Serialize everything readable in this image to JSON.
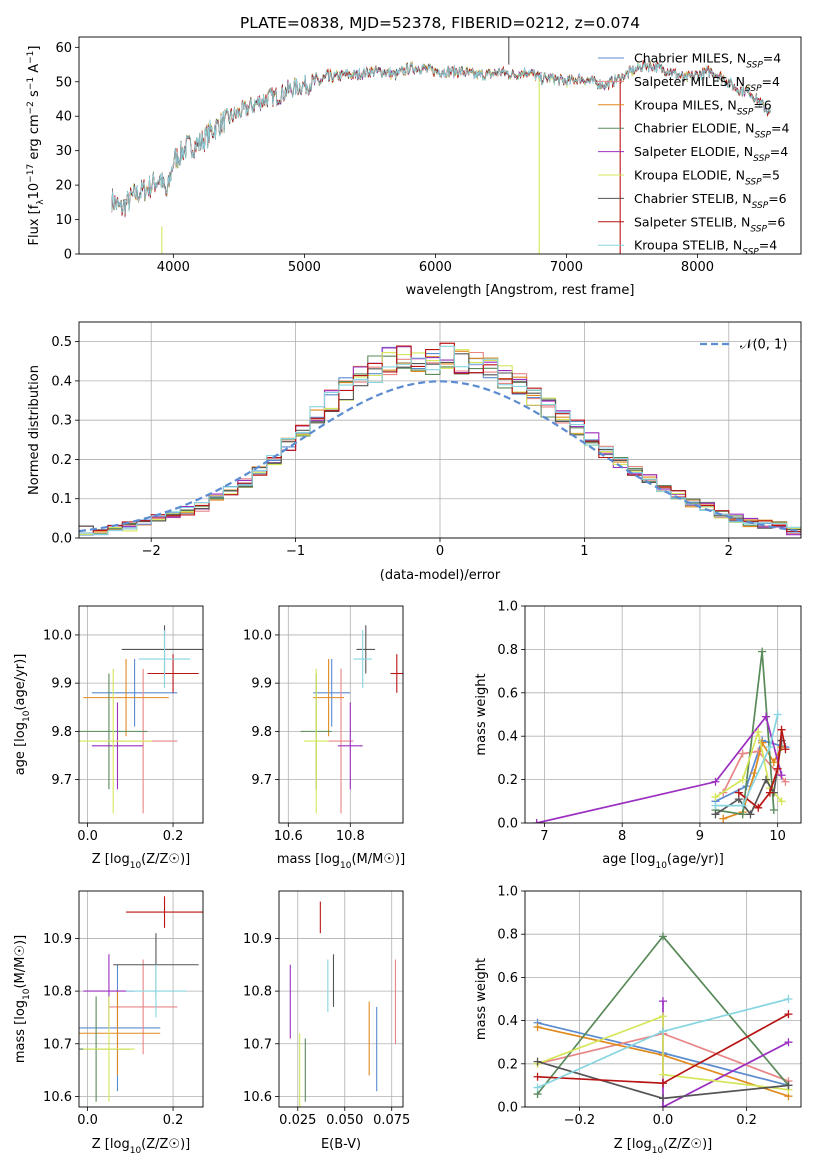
{
  "figure_title": "PLATE=0838, MJD=52378, FIBERID=0212, z=0.074",
  "colors": {
    "Chabrier MILES": "#5b8bd0",
    "Salpeter MILES": "#e88686",
    "Kroupa MILES": "#e08a1e",
    "Chabrier ELODIE": "#5a8a5a",
    "Salpeter ELODIE": "#9b2fc0",
    "Kroupa ELODIE": "#d6e65a",
    "Chabrier STELIB": "#555555",
    "Salpeter STELIB": "#b81414",
    "Kroupa STELIB": "#86d5e0",
    "normal": "#5b8bd0",
    "grid": "#b0b0b0"
  },
  "chart_data": [
    {
      "id": "spectrum",
      "type": "line",
      "title": "PLATE=0838, MJD=52378, FIBERID=0212, z=0.074",
      "xlabel": "wavelength [Angstrom, rest frame]",
      "ylabel": "Flux [f_λ10^-17 erg cm^-2 s^-1 A^-1]",
      "xlim": [
        3280,
        8790
      ],
      "ylim": [
        0,
        63
      ],
      "xticks": [
        "4000",
        "5000",
        "6000",
        "7000",
        "8000"
      ],
      "yticks": [
        "0",
        "10",
        "20",
        "30",
        "40",
        "50",
        "60"
      ],
      "grid": false,
      "legend_position": "top-right",
      "legend": [
        "Chabrier MILES, N_SSP=4",
        "Salpeter MILES, N_SSP=4",
        "Kroupa MILES, N_SSP=6",
        "Chabrier ELODIE, N_SSP=4",
        "Salpeter ELODIE, N_SSP=4",
        "Kroupa ELODIE, N_SSP=5",
        "Chabrier STELIB, N_SSP=6",
        "Salpeter STELIB, N_SSP=6",
        "Kroupa STELIB, N_SSP=4"
      ],
      "series_profile": {
        "x": [
          3530,
          3600,
          3700,
          3800,
          3900,
          3950,
          4000,
          4100,
          4200,
          4300,
          4400,
          4500,
          4600,
          4700,
          4800,
          4900,
          5000,
          5100,
          5200,
          5300,
          5400,
          5500,
          5600,
          5700,
          5800,
          5900,
          6000,
          6100,
          6200,
          6300,
          6400,
          6500,
          6600,
          6700,
          6800,
          6900,
          7000,
          7100,
          7200,
          7300,
          7400,
          7500,
          7600,
          7700,
          7800,
          7900,
          8000,
          8100,
          8200,
          8300,
          8400,
          8550
        ],
        "y": [
          16,
          13,
          17,
          19,
          22,
          17,
          27,
          31,
          32,
          36,
          39,
          41,
          43,
          45,
          46,
          48,
          49,
          50,
          51,
          52,
          52,
          53,
          53,
          52,
          54,
          54,
          53,
          53,
          53,
          52,
          52,
          53,
          52,
          53,
          51,
          51,
          50,
          51,
          50,
          49,
          51,
          53,
          55,
          54,
          53,
          51,
          52,
          53,
          51,
          48,
          47,
          41
        ]
      },
      "outliers": [
        {
          "series": "Kroupa ELODIE",
          "x": 3912,
          "y_min": 0,
          "y_max": 8
        },
        {
          "series": "Kroupa ELODIE",
          "x": 6792,
          "y_min": 0,
          "y_max": 51
        },
        {
          "series": "Salpeter STELIB",
          "x": 7410,
          "y_min": 0,
          "y_max": 51
        },
        {
          "series": "Chabrier STELIB",
          "x": 6560,
          "y_min": 55,
          "y_max": 63
        }
      ]
    },
    {
      "id": "residuals",
      "type": "histogram",
      "xlabel": "(data-model)/error",
      "ylabel": "Normed distribution",
      "xlim": [
        -2.5,
        2.5
      ],
      "ylim": [
        0,
        0.55
      ],
      "xticks": [
        -2,
        -1,
        0,
        1,
        2
      ],
      "xtick_labels": [
        "−2",
        "−1",
        "0",
        "1",
        "2"
      ],
      "yticks": [
        "0.0",
        "0.1",
        "0.2",
        "0.3",
        "0.4",
        "0.5"
      ],
      "grid": true,
      "legend_position": "top-right",
      "legend": [
        "𝒩(0, 1)"
      ],
      "bin_edges": [
        -2.5,
        -2.4,
        -2.3,
        -2.2,
        -2.1,
        -2.0,
        -1.9,
        -1.8,
        -1.7,
        -1.6,
        -1.5,
        -1.4,
        -1.3,
        -1.2,
        -1.1,
        -1.0,
        -0.9,
        -0.8,
        -0.7,
        -0.6,
        -0.5,
        -0.4,
        -0.3,
        -0.2,
        -0.1,
        0.0,
        0.1,
        0.2,
        0.3,
        0.4,
        0.5,
        0.6,
        0.7,
        0.8,
        0.9,
        1.0,
        1.1,
        1.2,
        1.3,
        1.4,
        1.5,
        1.6,
        1.7,
        1.8,
        1.9,
        2.0,
        2.1,
        2.2,
        2.3,
        2.4,
        2.5
      ],
      "base_density": [
        0.02,
        0.02,
        0.025,
        0.03,
        0.04,
        0.05,
        0.06,
        0.07,
        0.08,
        0.1,
        0.12,
        0.14,
        0.17,
        0.2,
        0.24,
        0.27,
        0.31,
        0.35,
        0.38,
        0.41,
        0.43,
        0.45,
        0.46,
        0.46,
        0.45,
        0.46,
        0.45,
        0.44,
        0.43,
        0.41,
        0.39,
        0.36,
        0.33,
        0.31,
        0.28,
        0.25,
        0.22,
        0.19,
        0.17,
        0.15,
        0.13,
        0.11,
        0.09,
        0.08,
        0.06,
        0.05,
        0.04,
        0.035,
        0.03,
        0.02
      ],
      "normal_curve": {
        "mean": 0,
        "sigma": 1
      }
    },
    {
      "id": "age_vs_z",
      "type": "errorbar",
      "xlabel": "Z [log10(Z/Z☉)]",
      "ylabel": "age  [log10(age/yr)]",
      "xlim": [
        -0.02,
        0.27
      ],
      "ylim": [
        9.61,
        10.06
      ],
      "xticks": [
        0,
        0.2
      ],
      "xtick_labels": [
        "0.0",
        "0.2"
      ],
      "yticks": [
        9.7,
        9.8,
        9.9,
        10.0
      ],
      "ytick_labels": [
        "9.7",
        "9.8",
        "9.9",
        "10.0"
      ],
      "grid": true,
      "points": [
        {
          "series": "Chabrier MILES",
          "x": 0.11,
          "xerr": 0.1,
          "y": 9.88,
          "yerr": 0.07
        },
        {
          "series": "Salpeter MILES",
          "x": 0.13,
          "xerr": 0.08,
          "y": 9.78,
          "yerr": 0.15
        },
        {
          "series": "Kroupa MILES",
          "x": 0.09,
          "xerr": 0.1,
          "y": 9.87,
          "yerr": 0.08
        },
        {
          "series": "Chabrier ELODIE",
          "x": 0.05,
          "xerr": 0.09,
          "y": 9.8,
          "yerr": 0.12
        },
        {
          "series": "Salpeter ELODIE",
          "x": 0.07,
          "xerr": 0.06,
          "y": 9.77,
          "yerr": 0.09
        },
        {
          "series": "Kroupa ELODIE",
          "x": 0.06,
          "xerr": 0.09,
          "y": 9.78,
          "yerr": 0.15
        },
        {
          "series": "Chabrier STELIB",
          "x": 0.18,
          "xerr": 0.1,
          "y": 9.97,
          "yerr": 0.05
        },
        {
          "series": "Salpeter STELIB",
          "x": 0.2,
          "xerr": 0.06,
          "y": 9.92,
          "yerr": 0.04
        },
        {
          "series": "Kroupa STELIB",
          "x": 0.18,
          "xerr": 0.06,
          "y": 9.95,
          "yerr": 0.06
        }
      ]
    },
    {
      "id": "age_vs_mass",
      "type": "errorbar",
      "xlabel": "mass [log10(M/M☉)]",
      "ylabel": "",
      "xlim": [
        10.57,
        10.97
      ],
      "ylim": [
        9.61,
        10.06
      ],
      "xticks": [
        10.6,
        10.8
      ],
      "xtick_labels": [
        "10.6",
        "10.8"
      ],
      "yticks": [
        9.7,
        9.8,
        9.9,
        10.0
      ],
      "ytick_labels": [
        "9.7",
        "9.8",
        "9.9",
        "10.0"
      ],
      "grid": true,
      "points": [
        {
          "series": "Chabrier MILES",
          "x": 10.74,
          "xerr": 0.06,
          "y": 9.88,
          "yerr": 0.07
        },
        {
          "series": "Salpeter MILES",
          "x": 10.77,
          "xerr": 0.04,
          "y": 9.78,
          "yerr": 0.15
        },
        {
          "series": "Kroupa MILES",
          "x": 10.73,
          "xerr": 0.05,
          "y": 9.87,
          "yerr": 0.08
        },
        {
          "series": "Chabrier ELODIE",
          "x": 10.69,
          "xerr": 0.05,
          "y": 9.8,
          "yerr": 0.12
        },
        {
          "series": "Salpeter ELODIE",
          "x": 10.8,
          "xerr": 0.04,
          "y": 9.77,
          "yerr": 0.09
        },
        {
          "series": "Kroupa ELODIE",
          "x": 10.69,
          "xerr": 0.04,
          "y": 9.78,
          "yerr": 0.15
        },
        {
          "series": "Chabrier STELIB",
          "x": 10.85,
          "xerr": 0.03,
          "y": 9.97,
          "yerr": 0.05
        },
        {
          "series": "Salpeter STELIB",
          "x": 10.95,
          "xerr": 0.02,
          "y": 9.92,
          "yerr": 0.04
        },
        {
          "series": "Kroupa STELIB",
          "x": 10.84,
          "xerr": 0.03,
          "y": 9.95,
          "yerr": 0.06
        }
      ]
    },
    {
      "id": "weight_vs_age",
      "type": "line",
      "xlabel": "age  [log10(age/yr)]",
      "ylabel": "mass weight",
      "xlim": [
        6.75,
        10.3
      ],
      "ylim": [
        0,
        1.0
      ],
      "xticks": [
        7,
        8,
        9,
        10
      ],
      "xtick_labels": [
        "7",
        "8",
        "9",
        "10"
      ],
      "yticks": [
        0,
        0.2,
        0.4,
        0.6,
        0.8,
        1.0
      ],
      "ytick_labels": [
        "0.0",
        "0.2",
        "0.4",
        "0.6",
        "0.8",
        "1.0"
      ],
      "grid": true,
      "series": [
        {
          "name": "Chabrier MILES",
          "x": [
            9.2,
            9.6,
            9.8,
            10.1
          ],
          "y": [
            0.1,
            0.17,
            0.38,
            0.35
          ]
        },
        {
          "name": "Salpeter MILES",
          "x": [
            9.3,
            9.55,
            9.75,
            10.1
          ],
          "y": [
            0.14,
            0.32,
            0.33,
            0.19
          ]
        },
        {
          "name": "Kroupa MILES",
          "x": [
            9.3,
            9.55,
            9.7,
            9.8,
            9.95,
            10.05
          ],
          "y": [
            0.02,
            0.05,
            0.23,
            0.37,
            0.28,
            0.35
          ]
        },
        {
          "name": "Chabrier ELODIE",
          "x": [
            9.2,
            9.55,
            9.8,
            9.95
          ],
          "y": [
            0.06,
            0.04,
            0.79,
            0.06
          ]
        },
        {
          "name": "Salpeter ELODIE",
          "x": [
            6.9,
            9.2,
            9.85,
            10.05
          ],
          "y": [
            0.0,
            0.19,
            0.49,
            0.22
          ]
        },
        {
          "name": "Kroupa ELODIE",
          "x": [
            9.2,
            9.55,
            9.75,
            9.9,
            10.05
          ],
          "y": [
            0.12,
            0.2,
            0.42,
            0.16,
            0.1
          ]
        },
        {
          "name": "Chabrier STELIB",
          "x": [
            9.2,
            9.5,
            9.65,
            9.85,
            9.95,
            10.05
          ],
          "y": [
            0.04,
            0.11,
            0.04,
            0.2,
            0.14,
            0.38
          ]
        },
        {
          "name": "Salpeter STELIB",
          "x": [
            9.5,
            9.75,
            9.9,
            10.0,
            10.05,
            10.1
          ],
          "y": [
            0.14,
            0.07,
            0.14,
            0.25,
            0.43,
            0.34
          ]
        },
        {
          "name": "Kroupa STELIB",
          "x": [
            9.2,
            9.55,
            9.9,
            10.0
          ],
          "y": [
            0.08,
            0.08,
            0.35,
            0.5
          ]
        }
      ]
    },
    {
      "id": "mass_vs_z",
      "type": "errorbar",
      "xlabel": "Z [log10(Z/Z☉)]",
      "ylabel": "mass [log10(M/M☉)]",
      "xlim": [
        -0.02,
        0.27
      ],
      "ylim": [
        10.58,
        10.99
      ],
      "xticks": [
        0,
        0.2
      ],
      "xtick_labels": [
        "0.0",
        "0.2"
      ],
      "yticks": [
        10.6,
        10.7,
        10.8,
        10.9
      ],
      "ytick_labels": [
        "10.6",
        "10.7",
        "10.8",
        "10.9"
      ],
      "grid": true,
      "points": [
        {
          "series": "Chabrier MILES",
          "x": 0.07,
          "xerr": 0.1,
          "y": 10.73,
          "yerr": 0.12
        },
        {
          "series": "Salpeter MILES",
          "x": 0.13,
          "xerr": 0.08,
          "y": 10.77,
          "yerr": 0.09
        },
        {
          "series": "Kroupa MILES",
          "x": 0.07,
          "xerr": 0.1,
          "y": 10.72,
          "yerr": 0.08
        },
        {
          "series": "Chabrier ELODIE",
          "x": 0.02,
          "xerr": 0.08,
          "y": 10.69,
          "yerr": 0.1
        },
        {
          "series": "Salpeter ELODIE",
          "x": 0.05,
          "xerr": 0.06,
          "y": 10.8,
          "yerr": 0.07
        },
        {
          "series": "Kroupa ELODIE",
          "x": 0.05,
          "xerr": 0.06,
          "y": 10.69,
          "yerr": 0.1
        },
        {
          "series": "Chabrier STELIB",
          "x": 0.16,
          "xerr": 0.1,
          "y": 10.85,
          "yerr": 0.06
        },
        {
          "series": "Salpeter STELIB",
          "x": 0.18,
          "xerr": 0.09,
          "y": 10.95,
          "yerr": 0.03
        },
        {
          "series": "Kroupa STELIB",
          "x": 0.16,
          "xerr": 0.07,
          "y": 10.8,
          "yerr": 0.05
        }
      ]
    },
    {
      "id": "mass_vs_ebv",
      "type": "errorbar",
      "xlabel": "E(B-V)",
      "ylabel": "",
      "xlim": [
        0.015,
        0.081
      ],
      "ylim": [
        10.58,
        10.99
      ],
      "xticks": [
        0.025,
        0.05,
        0.075
      ],
      "xtick_labels": [
        "0.025",
        "0.050",
        "0.075"
      ],
      "yticks": [
        10.6,
        10.7,
        10.8,
        10.9
      ],
      "ytick_labels": [
        "10.6",
        "10.7",
        "10.8",
        "10.9"
      ],
      "grid": true,
      "points": [
        {
          "series": "Chabrier MILES",
          "x": 0.067,
          "xerr": 0.0,
          "y": 10.69,
          "yerr": 0.08
        },
        {
          "series": "Salpeter MILES",
          "x": 0.077,
          "xerr": 0.0,
          "y": 10.78,
          "yerr": 0.08
        },
        {
          "series": "Kroupa MILES",
          "x": 0.063,
          "xerr": 0.0,
          "y": 10.71,
          "yerr": 0.07
        },
        {
          "series": "Chabrier ELODIE",
          "x": 0.029,
          "xerr": 0.0,
          "y": 10.65,
          "yerr": 0.06
        },
        {
          "series": "Salpeter ELODIE",
          "x": 0.021,
          "xerr": 0.0,
          "y": 10.78,
          "yerr": 0.07
        },
        {
          "series": "Kroupa ELODIE",
          "x": 0.026,
          "xerr": 0.0,
          "y": 10.65,
          "yerr": 0.07
        },
        {
          "series": "Chabrier STELIB",
          "x": 0.044,
          "xerr": 0.0,
          "y": 10.82,
          "yerr": 0.05
        },
        {
          "series": "Salpeter STELIB",
          "x": 0.037,
          "xerr": 0.0,
          "y": 10.94,
          "yerr": 0.03
        },
        {
          "series": "Kroupa STELIB",
          "x": 0.041,
          "xerr": 0.0,
          "y": 10.81,
          "yerr": 0.05
        }
      ]
    },
    {
      "id": "weight_vs_z",
      "type": "line",
      "xlabel": "Z [log10(Z/Z☉)]",
      "ylabel": "mass weight",
      "xlim": [
        -0.33,
        0.33
      ],
      "ylim": [
        0,
        1.0
      ],
      "xticks": [
        -0.2,
        0,
        0.2
      ],
      "xtick_labels": [
        "−0.2",
        "0.0",
        "0.2"
      ],
      "yticks": [
        0,
        0.2,
        0.4,
        0.6,
        0.8,
        1.0
      ],
      "ytick_labels": [
        "0.0",
        "0.2",
        "0.4",
        "0.6",
        "0.8",
        "1.0"
      ],
      "grid": true,
      "series": [
        {
          "name": "Chabrier MILES",
          "x": [
            -0.3,
            0.0,
            0.3
          ],
          "y": [
            0.39,
            0.25,
            0.1
          ]
        },
        {
          "name": "Salpeter MILES",
          "x": [
            -0.3,
            0.0,
            0.3
          ],
          "y": [
            0.2,
            0.34,
            0.12
          ]
        },
        {
          "name": "Kroupa MILES",
          "x": [
            -0.3,
            0.0,
            0.3
          ],
          "y": [
            0.37,
            0.24,
            0.05
          ]
        },
        {
          "name": "Chabrier ELODIE",
          "x": [
            -0.3,
            0.0,
            0.3
          ],
          "y": [
            0.06,
            0.79,
            0.1
          ]
        },
        {
          "name": "Salpeter ELODIE",
          "x": [
            0.0,
            0.0,
            0.3
          ],
          "y": [
            0.49,
            0.0,
            0.3
          ]
        },
        {
          "name": "Kroupa ELODIE",
          "x": [
            -0.3,
            0.0,
            0.0,
            0.3
          ],
          "y": [
            0.2,
            0.42,
            0.15,
            0.08
          ]
        },
        {
          "name": "Chabrier STELIB",
          "x": [
            -0.3,
            0.0,
            0.3
          ],
          "y": [
            0.21,
            0.04,
            0.1
          ]
        },
        {
          "name": "Salpeter STELIB",
          "x": [
            -0.3,
            0.0,
            0.3
          ],
          "y": [
            0.14,
            0.11,
            0.43
          ]
        },
        {
          "name": "Kroupa STELIB",
          "x": [
            -0.3,
            0.0,
            0.3
          ],
          "y": [
            0.09,
            0.35,
            0.5
          ]
        }
      ]
    }
  ]
}
